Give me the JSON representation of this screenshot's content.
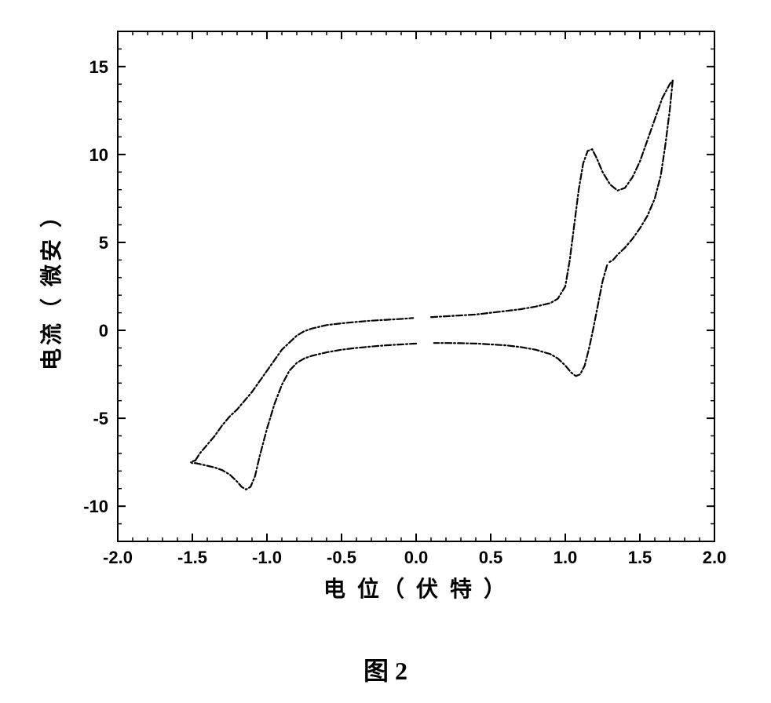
{
  "figure": {
    "caption": "图 2",
    "type": "line",
    "background_color": "#ffffff",
    "axis_color": "#000000",
    "curve_color": "#000000",
    "curve_dash": "8 3 2 3",
    "line_width": 2.2,
    "xlabel": "电 位（ 伏 特 ）",
    "ylabel": "电流（ 微安 ）",
    "label_fontsize": 28,
    "tick_fontsize": 22,
    "xlim": [
      -2.0,
      2.0
    ],
    "ylim": [
      -12,
      17
    ],
    "xticks_major": [
      -2.0,
      -1.5,
      -1.0,
      -0.5,
      0.0,
      0.5,
      1.0,
      1.5,
      2.0
    ],
    "xtick_labels": [
      "-2.0",
      "-1.5",
      "-1.0",
      "-0.5",
      "0.0",
      "0.5",
      "1.0",
      "1.5",
      "2.0"
    ],
    "xticks_minor_step": 0.1,
    "yticks_major": [
      -10,
      -5,
      0,
      5,
      10,
      15
    ],
    "ytick_labels": [
      "-10",
      "-5",
      "0",
      "5",
      "10",
      "15"
    ],
    "yticks_minor_step": 1,
    "series": [
      {
        "name": "cv-forward-upper",
        "points": [
          [
            -1.48,
            -7.4
          ],
          [
            -1.45,
            -7.0
          ],
          [
            -1.4,
            -6.5
          ],
          [
            -1.35,
            -6.0
          ],
          [
            -1.3,
            -5.4
          ],
          [
            -1.25,
            -4.9
          ],
          [
            -1.2,
            -4.5
          ],
          [
            -1.15,
            -4.0
          ],
          [
            -1.1,
            -3.5
          ],
          [
            -1.05,
            -2.9
          ],
          [
            -1.0,
            -2.3
          ],
          [
            -0.95,
            -1.7
          ],
          [
            -0.9,
            -1.1
          ],
          [
            -0.85,
            -0.7
          ],
          [
            -0.8,
            -0.3
          ],
          [
            -0.75,
            -0.05
          ],
          [
            -0.7,
            0.1
          ],
          [
            -0.6,
            0.3
          ],
          [
            -0.5,
            0.4
          ],
          [
            -0.4,
            0.48
          ],
          [
            -0.3,
            0.55
          ],
          [
            -0.2,
            0.6
          ],
          [
            -0.1,
            0.65
          ],
          [
            -0.02,
            0.7
          ]
        ]
      },
      {
        "name": "cv-forward-upper-2",
        "points": [
          [
            0.1,
            0.75
          ],
          [
            0.2,
            0.8
          ],
          [
            0.3,
            0.85
          ],
          [
            0.4,
            0.9
          ],
          [
            0.5,
            1.0
          ],
          [
            0.6,
            1.1
          ],
          [
            0.7,
            1.2
          ],
          [
            0.8,
            1.35
          ],
          [
            0.9,
            1.55
          ],
          [
            0.95,
            1.8
          ],
          [
            1.0,
            2.5
          ],
          [
            1.03,
            4.0
          ],
          [
            1.06,
            6.0
          ],
          [
            1.09,
            8.0
          ],
          [
            1.12,
            9.5
          ],
          [
            1.15,
            10.2
          ],
          [
            1.18,
            10.3
          ],
          [
            1.21,
            9.8
          ],
          [
            1.25,
            9.0
          ],
          [
            1.3,
            8.3
          ],
          [
            1.35,
            7.95
          ],
          [
            1.4,
            8.1
          ],
          [
            1.45,
            8.7
          ],
          [
            1.5,
            9.6
          ],
          [
            1.55,
            10.8
          ],
          [
            1.6,
            12.0
          ],
          [
            1.65,
            13.2
          ],
          [
            1.7,
            14.0
          ],
          [
            1.72,
            14.2
          ]
        ]
      },
      {
        "name": "cv-return-right",
        "points": [
          [
            1.72,
            14.2
          ],
          [
            1.7,
            12.5
          ],
          [
            1.67,
            10.5
          ],
          [
            1.64,
            8.8
          ],
          [
            1.6,
            7.5
          ],
          [
            1.55,
            6.5
          ],
          [
            1.5,
            5.8
          ],
          [
            1.45,
            5.2
          ],
          [
            1.4,
            4.7
          ],
          [
            1.35,
            4.3
          ],
          [
            1.32,
            4.0
          ],
          [
            1.29,
            3.85
          ]
        ]
      },
      {
        "name": "cv-return-lower",
        "points": [
          [
            1.28,
            3.7
          ],
          [
            1.25,
            2.8
          ],
          [
            1.22,
            1.5
          ],
          [
            1.19,
            0.2
          ],
          [
            1.16,
            -1.0
          ],
          [
            1.13,
            -2.0
          ],
          [
            1.1,
            -2.5
          ],
          [
            1.07,
            -2.6
          ],
          [
            1.04,
            -2.4
          ],
          [
            1.0,
            -2.0
          ],
          [
            0.95,
            -1.6
          ],
          [
            0.9,
            -1.35
          ],
          [
            0.8,
            -1.1
          ],
          [
            0.7,
            -0.95
          ],
          [
            0.6,
            -0.85
          ],
          [
            0.5,
            -0.8
          ],
          [
            0.4,
            -0.75
          ],
          [
            0.3,
            -0.73
          ],
          [
            0.2,
            -0.72
          ],
          [
            0.12,
            -0.72
          ]
        ]
      },
      {
        "name": "cv-return-lower-2",
        "points": [
          [
            0.0,
            -0.75
          ],
          [
            -0.1,
            -0.8
          ],
          [
            -0.2,
            -0.85
          ],
          [
            -0.3,
            -0.92
          ],
          [
            -0.4,
            -1.0
          ],
          [
            -0.5,
            -1.1
          ],
          [
            -0.6,
            -1.25
          ],
          [
            -0.7,
            -1.45
          ],
          [
            -0.75,
            -1.6
          ],
          [
            -0.8,
            -1.85
          ],
          [
            -0.85,
            -2.3
          ],
          [
            -0.9,
            -3.1
          ],
          [
            -0.95,
            -4.2
          ],
          [
            -1.0,
            -5.6
          ],
          [
            -1.05,
            -7.2
          ],
          [
            -1.08,
            -8.3
          ],
          [
            -1.11,
            -8.9
          ],
          [
            -1.14,
            -9.05
          ],
          [
            -1.17,
            -8.9
          ],
          [
            -1.2,
            -8.6
          ],
          [
            -1.25,
            -8.2
          ],
          [
            -1.3,
            -7.95
          ],
          [
            -1.35,
            -7.8
          ],
          [
            -1.4,
            -7.7
          ],
          [
            -1.45,
            -7.6
          ],
          [
            -1.48,
            -7.55
          ],
          [
            -1.5,
            -7.55
          ],
          [
            -1.51,
            -7.5
          ],
          [
            -1.5,
            -7.45
          ],
          [
            -1.48,
            -7.4
          ]
        ]
      }
    ]
  }
}
